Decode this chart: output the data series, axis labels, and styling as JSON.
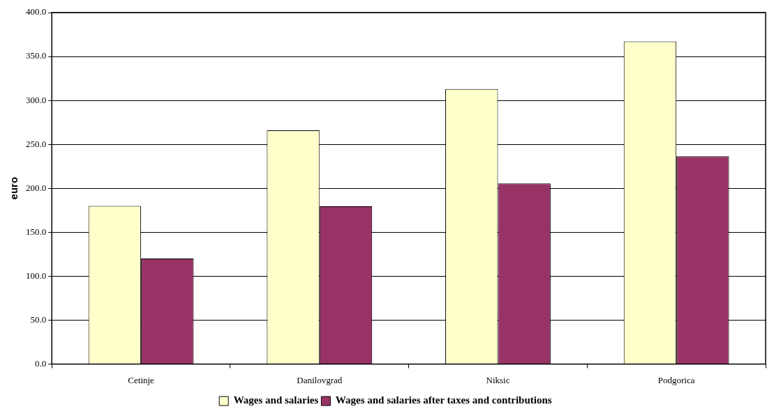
{
  "chart_data": {
    "type": "bar",
    "ylabel": "euro",
    "categories": [
      "Cetinje",
      "Danilovgrad",
      "Niksic",
      "Podgorica"
    ],
    "series": [
      {
        "name": "Wages and salaries",
        "color": "#ffffcc",
        "values": [
          180,
          266,
          313,
          367
        ]
      },
      {
        "name": "Wages and salaries after taxes and contributions",
        "color": "#993366",
        "values": [
          120,
          179.5,
          205.5,
          236.5
        ]
      }
    ],
    "ylim": [
      0,
      400
    ],
    "yticks": [
      {
        "value": 0,
        "label": "0.0"
      },
      {
        "value": 50,
        "label": "50.0"
      },
      {
        "value": 100,
        "label": "100.0"
      },
      {
        "value": 150,
        "label": "150.0"
      },
      {
        "value": 200,
        "label": "200.0"
      },
      {
        "value": 250,
        "label": "250.0"
      },
      {
        "value": 300,
        "label": "300.0"
      },
      {
        "value": 350,
        "label": "350.0"
      },
      {
        "value": 400,
        "label": "400.0"
      }
    ],
    "grid": "y",
    "legend": "bottom"
  }
}
